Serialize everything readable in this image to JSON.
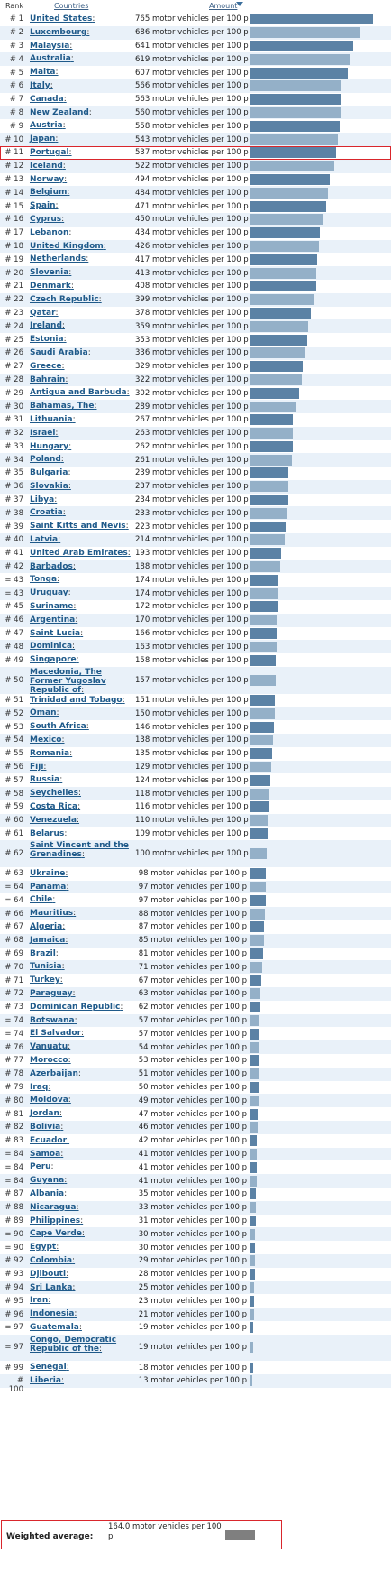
{
  "header": {
    "rank": "Rank",
    "countries": "Countries",
    "amount": "Amount"
  },
  "unit": "motor vehicles per 100 p",
  "highlighted_country": "Portugal",
  "colors": {
    "bar_dark": "#5b82a5",
    "bar_light": "#94b0c8",
    "avg_bar": "#7f7f7f",
    "highlight": "#d9262c",
    "link": "#1f5a8a"
  },
  "weighted_average": {
    "label": "Weighted average:",
    "text": "164.0 motor vehicles per 100 p",
    "value": 164.0
  },
  "chart_data": {
    "type": "bar",
    "orientation": "horizontal",
    "xlim": [
      0,
      765
    ],
    "rows": [
      {
        "rank": "# 1",
        "country": "United States",
        "value": 765
      },
      {
        "rank": "# 2",
        "country": "Luxembourg",
        "value": 686
      },
      {
        "rank": "# 3",
        "country": "Malaysia",
        "value": 641
      },
      {
        "rank": "# 4",
        "country": "Australia",
        "value": 619
      },
      {
        "rank": "# 5",
        "country": "Malta",
        "value": 607
      },
      {
        "rank": "# 6",
        "country": "Italy",
        "value": 566
      },
      {
        "rank": "# 7",
        "country": "Canada",
        "value": 563
      },
      {
        "rank": "# 8",
        "country": "New Zealand",
        "value": 560
      },
      {
        "rank": "# 9",
        "country": "Austria",
        "value": 558
      },
      {
        "rank": "# 10",
        "country": "Japan",
        "value": 543
      },
      {
        "rank": "# 11",
        "country": "Portugal",
        "value": 537
      },
      {
        "rank": "# 12",
        "country": "Iceland",
        "value": 522
      },
      {
        "rank": "# 13",
        "country": "Norway",
        "value": 494
      },
      {
        "rank": "# 14",
        "country": "Belgium",
        "value": 484
      },
      {
        "rank": "# 15",
        "country": "Spain",
        "value": 471
      },
      {
        "rank": "# 16",
        "country": "Cyprus",
        "value": 450
      },
      {
        "rank": "# 17",
        "country": "Lebanon",
        "value": 434
      },
      {
        "rank": "# 18",
        "country": "United Kingdom",
        "value": 426
      },
      {
        "rank": "# 19",
        "country": "Netherlands",
        "value": 417
      },
      {
        "rank": "# 20",
        "country": "Slovenia",
        "value": 413
      },
      {
        "rank": "# 21",
        "country": "Denmark",
        "value": 408
      },
      {
        "rank": "# 22",
        "country": "Czech Republic",
        "value": 399
      },
      {
        "rank": "# 23",
        "country": "Qatar",
        "value": 378
      },
      {
        "rank": "# 24",
        "country": "Ireland",
        "value": 359
      },
      {
        "rank": "# 25",
        "country": "Estonia",
        "value": 353
      },
      {
        "rank": "# 26",
        "country": "Saudi Arabia",
        "value": 336
      },
      {
        "rank": "# 27",
        "country": "Greece",
        "value": 329
      },
      {
        "rank": "# 28",
        "country": "Bahrain",
        "value": 322
      },
      {
        "rank": "# 29",
        "country": "Antigua and Barbuda",
        "value": 302
      },
      {
        "rank": "# 30",
        "country": "Bahamas, The",
        "value": 289
      },
      {
        "rank": "# 31",
        "country": "Lithuania",
        "value": 267
      },
      {
        "rank": "# 32",
        "country": "Israel",
        "value": 263
      },
      {
        "rank": "# 33",
        "country": "Hungary",
        "value": 262
      },
      {
        "rank": "# 34",
        "country": "Poland",
        "value": 261
      },
      {
        "rank": "# 35",
        "country": "Bulgaria",
        "value": 239
      },
      {
        "rank": "# 36",
        "country": "Slovakia",
        "value": 237
      },
      {
        "rank": "# 37",
        "country": "Libya",
        "value": 234
      },
      {
        "rank": "# 38",
        "country": "Croatia",
        "value": 233
      },
      {
        "rank": "# 39",
        "country": "Saint Kitts and Nevis",
        "value": 223
      },
      {
        "rank": "# 40",
        "country": "Latvia",
        "value": 214
      },
      {
        "rank": "# 41",
        "country": "United Arab Emirates",
        "value": 193
      },
      {
        "rank": "# 42",
        "country": "Barbados",
        "value": 188
      },
      {
        "rank": "= 43",
        "country": "Tonga",
        "value": 174
      },
      {
        "rank": "= 43",
        "country": "Uruguay",
        "value": 174
      },
      {
        "rank": "# 45",
        "country": "Suriname",
        "value": 172
      },
      {
        "rank": "# 46",
        "country": "Argentina",
        "value": 170
      },
      {
        "rank": "# 47",
        "country": "Saint Lucia",
        "value": 166
      },
      {
        "rank": "# 48",
        "country": "Dominica",
        "value": 163
      },
      {
        "rank": "# 49",
        "country": "Singapore",
        "value": 158
      },
      {
        "rank": "# 50",
        "country": "Macedonia, The Former Yugoslav Republic of",
        "value": 157
      },
      {
        "rank": "# 51",
        "country": "Trinidad and Tobago",
        "value": 151
      },
      {
        "rank": "# 52",
        "country": "Oman",
        "value": 150
      },
      {
        "rank": "# 53",
        "country": "South Africa",
        "value": 146
      },
      {
        "rank": "# 54",
        "country": "Mexico",
        "value": 138
      },
      {
        "rank": "# 55",
        "country": "Romania",
        "value": 135
      },
      {
        "rank": "# 56",
        "country": "Fiji",
        "value": 129
      },
      {
        "rank": "# 57",
        "country": "Russia",
        "value": 124
      },
      {
        "rank": "# 58",
        "country": "Seychelles",
        "value": 118
      },
      {
        "rank": "# 59",
        "country": "Costa Rica",
        "value": 116
      },
      {
        "rank": "# 60",
        "country": "Venezuela",
        "value": 110
      },
      {
        "rank": "# 61",
        "country": "Belarus",
        "value": 109
      },
      {
        "rank": "# 62",
        "country": "Saint Vincent and the Grenadines",
        "value": 100
      },
      {
        "rank": "# 63",
        "country": "Ukraine",
        "value": 98
      },
      {
        "rank": "= 64",
        "country": "Panama",
        "value": 97
      },
      {
        "rank": "= 64",
        "country": "Chile",
        "value": 97
      },
      {
        "rank": "# 66",
        "country": "Mauritius",
        "value": 88
      },
      {
        "rank": "# 67",
        "country": "Algeria",
        "value": 87
      },
      {
        "rank": "# 68",
        "country": "Jamaica",
        "value": 85
      },
      {
        "rank": "# 69",
        "country": "Brazil",
        "value": 81
      },
      {
        "rank": "# 70",
        "country": "Tunisia",
        "value": 71
      },
      {
        "rank": "# 71",
        "country": "Turkey",
        "value": 67
      },
      {
        "rank": "# 72",
        "country": "Paraguay",
        "value": 63
      },
      {
        "rank": "# 73",
        "country": "Dominican Republic",
        "value": 62
      },
      {
        "rank": "= 74",
        "country": "Botswana",
        "value": 57
      },
      {
        "rank": "= 74",
        "country": "El Salvador",
        "value": 57
      },
      {
        "rank": "# 76",
        "country": "Vanuatu",
        "value": 54
      },
      {
        "rank": "# 77",
        "country": "Morocco",
        "value": 53
      },
      {
        "rank": "# 78",
        "country": "Azerbaijan",
        "value": 51
      },
      {
        "rank": "# 79",
        "country": "Iraq",
        "value": 50
      },
      {
        "rank": "# 80",
        "country": "Moldova",
        "value": 49
      },
      {
        "rank": "# 81",
        "country": "Jordan",
        "value": 47
      },
      {
        "rank": "# 82",
        "country": "Bolivia",
        "value": 46
      },
      {
        "rank": "# 83",
        "country": "Ecuador",
        "value": 42
      },
      {
        "rank": "= 84",
        "country": "Samoa",
        "value": 41
      },
      {
        "rank": "= 84",
        "country": "Peru",
        "value": 41
      },
      {
        "rank": "= 84",
        "country": "Guyana",
        "value": 41
      },
      {
        "rank": "# 87",
        "country": "Albania",
        "value": 35
      },
      {
        "rank": "# 88",
        "country": "Nicaragua",
        "value": 33
      },
      {
        "rank": "# 89",
        "country": "Philippines",
        "value": 31
      },
      {
        "rank": "= 90",
        "country": "Cape Verde",
        "value": 30
      },
      {
        "rank": "= 90",
        "country": "Egypt",
        "value": 30
      },
      {
        "rank": "# 92",
        "country": "Colombia",
        "value": 29
      },
      {
        "rank": "# 93",
        "country": "Djibouti",
        "value": 28
      },
      {
        "rank": "# 94",
        "country": "Sri Lanka",
        "value": 25
      },
      {
        "rank": "# 95",
        "country": "Iran",
        "value": 23
      },
      {
        "rank": "# 96",
        "country": "Indonesia",
        "value": 21
      },
      {
        "rank": "= 97",
        "country": "Guatemala",
        "value": 19
      },
      {
        "rank": "= 97",
        "country": "Congo, Democratic Republic of the",
        "value": 19
      },
      {
        "rank": "# 99",
        "country": "Senegal",
        "value": 18
      },
      {
        "rank": "# 100",
        "country": "Liberia",
        "value": 13
      }
    ]
  }
}
